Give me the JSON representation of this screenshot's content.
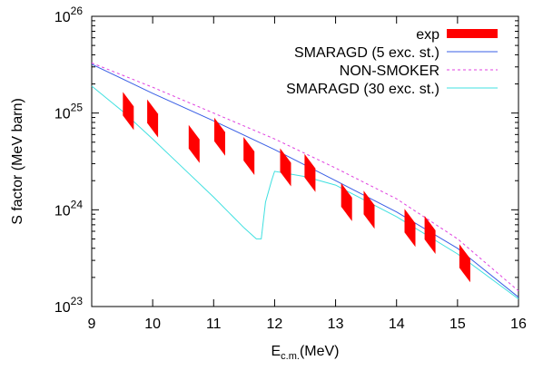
{
  "chart_data": {
    "type": "scatter",
    "title": "",
    "xlabel_main": "E",
    "xlabel_sub": "c.m.",
    "xlabel_unit": "(MeV)",
    "ylabel": "S factor (MeV barn)",
    "xlim": [
      9,
      16
    ],
    "ylim": [
      1e+23,
      1e+26
    ],
    "yscale": "log",
    "grid": false,
    "legend_position": "top-right",
    "x_ticks": [
      "9",
      "10",
      "11",
      "12",
      "13",
      "14",
      "15",
      "16"
    ],
    "y_ticks": [
      {
        "base": "10",
        "exp": "23"
      },
      {
        "base": "10",
        "exp": "24"
      },
      {
        "base": "10",
        "exp": "25"
      },
      {
        "base": "10",
        "exp": "26"
      }
    ],
    "series": [
      {
        "name": "exp",
        "kind": "error-box",
        "color": "#ff0000",
        "points": [
          {
            "x": 9.6,
            "y": 1.05e+25
          },
          {
            "x": 10.0,
            "y": 8.8e+24
          },
          {
            "x": 10.68,
            "y": 4.8e+24
          },
          {
            "x": 11.1,
            "y": 5.7e+24
          },
          {
            "x": 11.58,
            "y": 3.6e+24
          },
          {
            "x": 12.18,
            "y": 2.75e+24
          },
          {
            "x": 12.58,
            "y": 2.4e+24
          },
          {
            "x": 13.18,
            "y": 1.2e+24
          },
          {
            "x": 13.55,
            "y": 1e+24
          },
          {
            "x": 14.22,
            "y": 6.5e+23
          },
          {
            "x": 14.55,
            "y": 5.5e+23
          },
          {
            "x": 15.12,
            "y": 2.8e+23
          }
        ]
      },
      {
        "name": "SMARAGD (5 exc. st.)",
        "kind": "line",
        "color": "#3a5fe5",
        "dash": "",
        "x": [
          9.0,
          10.0,
          11.0,
          12.0,
          13.0,
          14.0,
          15.0,
          16.0
        ],
        "y": [
          3.2e+25,
          1.6e+25,
          8.3e+24,
          4.2e+24,
          2e+24,
          9.5e+23,
          4e+23,
          1.25e+23
        ]
      },
      {
        "name": "NON-SMOKER",
        "kind": "line",
        "color": "#e040e0",
        "dash": "3,3",
        "x": [
          9.0,
          10.0,
          11.0,
          12.0,
          13.0,
          14.0,
          15.0,
          16.0
        ],
        "y": [
          3.3e+25,
          1.85e+25,
          1e+25,
          5.4e+24,
          2.7e+24,
          1.3e+24,
          5e+23,
          1.45e+23
        ]
      },
      {
        "name": "SMARAGD (30 exc. st.)",
        "kind": "line",
        "color": "#40e0e0",
        "dash": "",
        "x": [
          9.0,
          9.5,
          10.0,
          10.5,
          11.0,
          11.5,
          11.7,
          11.78,
          11.85,
          11.95,
          12.0,
          12.5,
          13.0,
          14.0,
          15.0,
          16.0
        ],
        "y": [
          1.9e+25,
          1.05e+25,
          5.4e+24,
          2.7e+24,
          1.35e+24,
          6.5e+23,
          5e+23,
          5e+23,
          1.2e+24,
          2e+24,
          2.5e+24,
          2.2e+24,
          1.8e+24,
          8.5e+23,
          3.5e+23,
          1.2e+23
        ]
      }
    ]
  }
}
